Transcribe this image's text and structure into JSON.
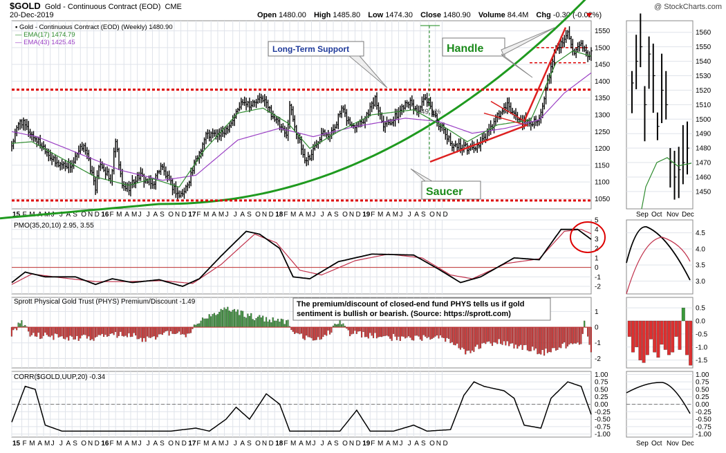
{
  "header": {
    "symbol": "$GOLD",
    "name": "Gold - Continuous Contract (EOD)",
    "exchange": "CME",
    "date": "20-Dec-2019",
    "open_label": "Open",
    "open": "1480.00",
    "high_label": "High",
    "high": "1485.80",
    "low_label": "Low",
    "low": "1474.30",
    "close_label": "Close",
    "close": "1480.90",
    "volume_label": "Volume",
    "volume": "84.4M",
    "chg_label": "Chg",
    "chg": "-0.30 (-0.02%)",
    "watermark": "@ StockCharts.com"
  },
  "colors": {
    "price_bar": "#000000",
    "ema17": "#2e8b2e",
    "ema43": "#9a3fc4",
    "saucer": "#1f9a1f",
    "support": "#dd0000",
    "trendline": "#dd2020",
    "pmo": "#000000",
    "pmo_signal": "#c0304a",
    "phys_pos": "#3a9a3a",
    "phys_neg": "#dd3030",
    "label_blue": "#1f3a9a",
    "label_green": "#1a8a1a"
  },
  "chart_data": [
    {
      "type": "bar",
      "panel": "price-main",
      "legend": [
        {
          "symbol": "▪",
          "text": "Gold - Continuous Contract (EOD) (Weekly) 1480.90",
          "color": "#000000"
        },
        {
          "symbol": "—",
          "text": "EMA(17) 1474.79",
          "color": "#2e8b2e"
        },
        {
          "symbol": "—",
          "text": "EMA(43) 1425.45",
          "color": "#9a3fc4"
        }
      ],
      "ylim": [
        1020,
        1580
      ],
      "yticks": [
        1050,
        1100,
        1150,
        1200,
        1250,
        1300,
        1350,
        1400,
        1450,
        1500,
        1550
      ],
      "support_level": 1375,
      "bottom_level": 1045,
      "annotations": {
        "long_term_support": "Long-Term Support",
        "handle": "Handle",
        "saucer": "Saucer",
        "retrace": "49.1%"
      },
      "price_anchors": [
        [
          0,
          1210
        ],
        [
          5,
          1285
        ],
        [
          12,
          1240
        ],
        [
          20,
          1200
        ],
        [
          26,
          1155
        ],
        [
          36,
          1150
        ],
        [
          43,
          1215
        ],
        [
          50,
          1085
        ],
        [
          53,
          1160
        ],
        [
          59,
          1100
        ],
        [
          62,
          1220
        ],
        [
          66,
          1085
        ],
        [
          70,
          1085
        ],
        [
          76,
          1120
        ],
        [
          84,
          1090
        ],
        [
          89,
          1150
        ],
        [
          94,
          1100
        ],
        [
          100,
          1060
        ],
        [
          103,
          1070
        ],
        [
          109,
          1150
        ],
        [
          116,
          1240
        ],
        [
          125,
          1240
        ],
        [
          132,
          1285
        ],
        [
          138,
          1345
        ],
        [
          143,
          1330
        ],
        [
          150,
          1350
        ],
        [
          155,
          1305
        ],
        [
          160,
          1265
        ],
        [
          164,
          1235
        ],
        [
          166,
          1330
        ],
        [
          170,
          1250
        ],
        [
          175,
          1165
        ],
        [
          178,
          1175
        ],
        [
          182,
          1215
        ],
        [
          186,
          1260
        ],
        [
          190,
          1235
        ],
        [
          197,
          1315
        ],
        [
          203,
          1265
        ],
        [
          210,
          1285
        ],
        [
          217,
          1345
        ],
        [
          222,
          1275
        ],
        [
          228,
          1285
        ],
        [
          236,
          1345
        ],
        [
          242,
          1310
        ],
        [
          247,
          1345
        ],
        [
          252,
          1300
        ],
        [
          257,
          1260
        ],
        [
          262,
          1215
        ],
        [
          268,
          1205
        ],
        [
          276,
          1200
        ],
        [
          282,
          1225
        ],
        [
          290,
          1295
        ],
        [
          296,
          1325
        ],
        [
          303,
          1285
        ],
        [
          310,
          1275
        ],
        [
          316,
          1300
        ],
        [
          320,
          1395
        ],
        [
          325,
          1500
        ],
        [
          330,
          1520
        ],
        [
          332,
          1555
        ],
        [
          336,
          1480
        ],
        [
          340,
          1505
        ],
        [
          344,
          1465
        ],
        [
          346,
          1480
        ]
      ],
      "ema17_anchors": [
        [
          0,
          1215
        ],
        [
          12,
          1220
        ],
        [
          30,
          1170
        ],
        [
          50,
          1115
        ],
        [
          70,
          1090
        ],
        [
          84,
          1110
        ],
        [
          100,
          1085
        ],
        [
          115,
          1195
        ],
        [
          135,
          1305
        ],
        [
          150,
          1320
        ],
        [
          165,
          1275
        ],
        [
          178,
          1200
        ],
        [
          195,
          1250
        ],
        [
          215,
          1300
        ],
        [
          240,
          1315
        ],
        [
          258,
          1265
        ],
        [
          272,
          1220
        ],
        [
          290,
          1270
        ],
        [
          310,
          1285
        ],
        [
          325,
          1455
        ],
        [
          335,
          1490
        ],
        [
          346,
          1475
        ]
      ],
      "ema43_anchors": [
        [
          0,
          1250
        ],
        [
          15,
          1235
        ],
        [
          40,
          1185
        ],
        [
          65,
          1135
        ],
        [
          90,
          1105
        ],
        [
          110,
          1120
        ],
        [
          135,
          1225
        ],
        [
          160,
          1260
        ],
        [
          180,
          1235
        ],
        [
          205,
          1265
        ],
        [
          235,
          1290
        ],
        [
          255,
          1280
        ],
        [
          275,
          1245
        ],
        [
          295,
          1260
        ],
        [
          315,
          1285
        ],
        [
          330,
          1365
        ],
        [
          346,
          1425
        ]
      ]
    },
    {
      "type": "bar",
      "panel": "price-inset",
      "ylim": [
        1438,
        1568
      ],
      "yticks": [
        1450,
        1460,
        1470,
        1480,
        1490,
        1500,
        1510,
        1520,
        1530,
        1540,
        1550,
        1560
      ],
      "x_labels": [
        "Sep",
        "Oct",
        "Nov",
        "Dec"
      ],
      "closes": [
        1525,
        1540,
        1550,
        1510,
        1545,
        1530,
        1495,
        1520,
        1510,
        1470,
        1460,
        1465,
        1470,
        1480
      ]
    },
    {
      "type": "line",
      "panel": "pmo",
      "title": "PMO(35,20,10) 2.95, 3.55",
      "ylim": [
        -2.8,
        5
      ],
      "yticks": [
        -2,
        -1,
        0,
        1,
        2,
        3,
        4,
        5
      ],
      "pmo_anchors": [
        [
          0,
          -1.6
        ],
        [
          8,
          -0.5
        ],
        [
          20,
          -1.0
        ],
        [
          38,
          -1.0
        ],
        [
          50,
          -1.8
        ],
        [
          60,
          -1.2
        ],
        [
          72,
          -1.6
        ],
        [
          88,
          -1.3
        ],
        [
          102,
          -2.0
        ],
        [
          112,
          -1.2
        ],
        [
          125,
          1.2
        ],
        [
          140,
          3.8
        ],
        [
          148,
          3.5
        ],
        [
          160,
          2.0
        ],
        [
          168,
          -1.0
        ],
        [
          178,
          -1.2
        ],
        [
          195,
          0.6
        ],
        [
          215,
          1.4
        ],
        [
          240,
          1.3
        ],
        [
          255,
          -0.2
        ],
        [
          268,
          -1.6
        ],
        [
          280,
          -1.0
        ],
        [
          300,
          1.0
        ],
        [
          315,
          0.8
        ],
        [
          328,
          4.0
        ],
        [
          338,
          4.0
        ],
        [
          346,
          2.95
        ]
      ],
      "signal_anchors": [
        [
          0,
          -1.8
        ],
        [
          12,
          -0.7
        ],
        [
          30,
          -1.1
        ],
        [
          50,
          -1.5
        ],
        [
          70,
          -1.5
        ],
        [
          90,
          -1.4
        ],
        [
          108,
          -1.7
        ],
        [
          125,
          0.3
        ],
        [
          145,
          3.5
        ],
        [
          158,
          2.6
        ],
        [
          172,
          -0.3
        ],
        [
          185,
          -0.8
        ],
        [
          205,
          0.7
        ],
        [
          225,
          1.4
        ],
        [
          245,
          1.0
        ],
        [
          262,
          -0.8
        ],
        [
          275,
          -1.2
        ],
        [
          295,
          0.4
        ],
        [
          315,
          0.9
        ],
        [
          330,
          3.8
        ],
        [
          340,
          4.0
        ],
        [
          346,
          3.55
        ]
      ]
    },
    {
      "type": "bar",
      "panel": "phys",
      "title": "Sprott Physical Gold Trust (PHYS) Premium/Discount -1.49",
      "note": "The premium/discount of closed-end fund PHYS tells us if gold sentiment is bullish or bearish. (Source: https://sprott.com)",
      "ylim": [
        -2.6,
        1.9
      ],
      "yticks": [
        -2,
        -1,
        0,
        1
      ],
      "anchors": [
        [
          0,
          -0.4
        ],
        [
          6,
          0.3
        ],
        [
          12,
          -0.5
        ],
        [
          25,
          -0.6
        ],
        [
          40,
          -0.7
        ],
        [
          55,
          -0.6
        ],
        [
          70,
          -0.4
        ],
        [
          80,
          -0.8
        ],
        [
          92,
          -0.4
        ],
        [
          105,
          -0.5
        ],
        [
          112,
          0.4
        ],
        [
          128,
          1.1
        ],
        [
          150,
          0.5
        ],
        [
          165,
          0.3
        ],
        [
          172,
          -0.6
        ],
        [
          180,
          -0.8
        ],
        [
          188,
          -0.5
        ],
        [
          195,
          0.4
        ],
        [
          202,
          -0.4
        ],
        [
          220,
          -0.6
        ],
        [
          240,
          -0.7
        ],
        [
          255,
          -0.6
        ],
        [
          262,
          -1.0
        ],
        [
          272,
          -1.6
        ],
        [
          282,
          -1.1
        ],
        [
          292,
          -0.9
        ],
        [
          305,
          -1.3
        ],
        [
          318,
          -1.6
        ],
        [
          328,
          -1.2
        ],
        [
          340,
          -0.9
        ],
        [
          342,
          0.4
        ],
        [
          346,
          -1.49
        ]
      ]
    },
    {
      "type": "line",
      "panel": "corr",
      "title": "CORR($GOLD,UUP,20) -0.34",
      "ylim": [
        -1.1,
        1.1
      ],
      "yticks": [
        -1.0,
        -0.75,
        -0.5,
        -0.25,
        0.0,
        0.25,
        0.5,
        0.75,
        1.0
      ],
      "anchors": [
        [
          0,
          -0.6
        ],
        [
          8,
          0.6
        ],
        [
          14,
          0.5
        ],
        [
          20,
          -0.7
        ],
        [
          30,
          -0.9
        ],
        [
          55,
          -0.9
        ],
        [
          75,
          -0.9
        ],
        [
          95,
          -0.9
        ],
        [
          110,
          -0.8
        ],
        [
          118,
          -0.9
        ],
        [
          128,
          -0.5
        ],
        [
          134,
          -0.1
        ],
        [
          142,
          -0.5
        ],
        [
          152,
          0.35
        ],
        [
          160,
          0.0
        ],
        [
          166,
          -0.9
        ],
        [
          180,
          -0.9
        ],
        [
          196,
          -0.9
        ],
        [
          206,
          -0.2
        ],
        [
          214,
          -0.9
        ],
        [
          228,
          -0.9
        ],
        [
          240,
          -0.7
        ],
        [
          248,
          -0.9
        ],
        [
          262,
          -0.85
        ],
        [
          270,
          0.3
        ],
        [
          276,
          0.75
        ],
        [
          282,
          0.6
        ],
        [
          294,
          0.45
        ],
        [
          300,
          0.2
        ],
        [
          306,
          -0.7
        ],
        [
          316,
          -0.8
        ],
        [
          322,
          0.2
        ],
        [
          332,
          0.75
        ],
        [
          340,
          0.6
        ],
        [
          346,
          -0.34
        ]
      ]
    }
  ],
  "x_axis": {
    "labels": [
      {
        "t": "15",
        "w": 0,
        "bold": true
      },
      {
        "t": "F",
        "w": 6
      },
      {
        "t": "M",
        "w": 10
      },
      {
        "t": "A",
        "w": 15
      },
      {
        "t": "M",
        "w": 19
      },
      {
        "t": "J",
        "w": 23
      },
      {
        "t": "J",
        "w": 28
      },
      {
        "t": "A",
        "w": 32
      },
      {
        "t": "S",
        "w": 36
      },
      {
        "t": "O",
        "w": 41
      },
      {
        "t": "N",
        "w": 45
      },
      {
        "t": "D",
        "w": 49
      },
      {
        "t": "16",
        "w": 53,
        "bold": true
      },
      {
        "t": "F",
        "w": 58
      },
      {
        "t": "M",
        "w": 62
      },
      {
        "t": "A",
        "w": 67
      },
      {
        "t": "M",
        "w": 71
      },
      {
        "t": "J",
        "w": 75
      },
      {
        "t": "J",
        "w": 80
      },
      {
        "t": "A",
        "w": 84
      },
      {
        "t": "S",
        "w": 88
      },
      {
        "t": "O",
        "w": 93
      },
      {
        "t": "N",
        "w": 97
      },
      {
        "t": "D",
        "w": 101
      },
      {
        "t": "17",
        "w": 105,
        "bold": true
      },
      {
        "t": "F",
        "w": 110
      },
      {
        "t": "M",
        "w": 114
      },
      {
        "t": "A",
        "w": 119
      },
      {
        "t": "M",
        "w": 123
      },
      {
        "t": "J",
        "w": 127
      },
      {
        "t": "J",
        "w": 132
      },
      {
        "t": "A",
        "w": 136
      },
      {
        "t": "S",
        "w": 140
      },
      {
        "t": "O",
        "w": 145
      },
      {
        "t": "N",
        "w": 149
      },
      {
        "t": "D",
        "w": 153
      },
      {
        "t": "18",
        "w": 157,
        "bold": true
      },
      {
        "t": "F",
        "w": 162
      },
      {
        "t": "M",
        "w": 166
      },
      {
        "t": "A",
        "w": 171
      },
      {
        "t": "M",
        "w": 175
      },
      {
        "t": "J",
        "w": 179
      },
      {
        "t": "J",
        "w": 184
      },
      {
        "t": "A",
        "w": 188
      },
      {
        "t": "S",
        "w": 192
      },
      {
        "t": "O",
        "w": 197
      },
      {
        "t": "N",
        "w": 201
      },
      {
        "t": "D",
        "w": 205
      },
      {
        "t": "19",
        "w": 209,
        "bold": true
      },
      {
        "t": "F",
        "w": 214
      },
      {
        "t": "M",
        "w": 218
      },
      {
        "t": "A",
        "w": 223
      },
      {
        "t": "M",
        "w": 227
      },
      {
        "t": "J",
        "w": 231
      },
      {
        "t": "J",
        "w": 236
      },
      {
        "t": "A",
        "w": 240
      },
      {
        "t": "S",
        "w": 244
      },
      {
        "t": "O",
        "w": 249
      },
      {
        "t": "N",
        "w": 253
      },
      {
        "t": "D",
        "w": 257
      }
    ],
    "inset_labels": [
      "Sep",
      "Oct",
      "Nov",
      "Dec"
    ]
  }
}
